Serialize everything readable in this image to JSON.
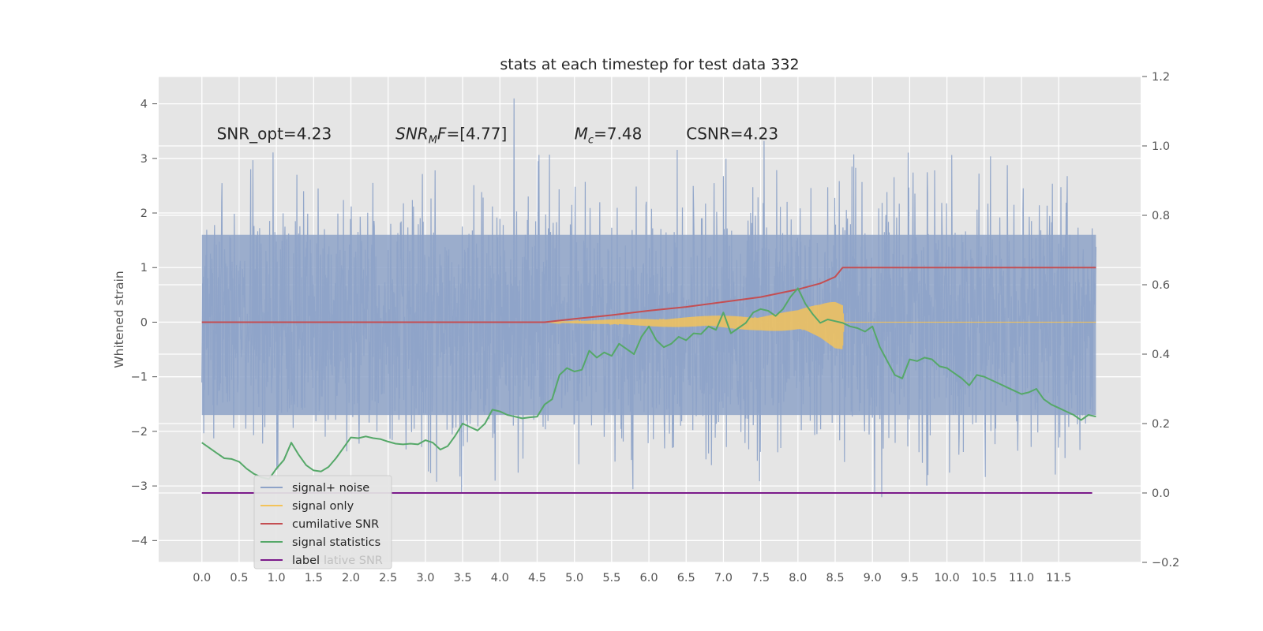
{
  "chart_data": {
    "type": "line",
    "title": "stats at each timestep for test data 332",
    "ylabel": "Whitened strain",
    "xlabel": "",
    "xlim": [
      -0.58,
      12.6
    ],
    "ylim": [
      -4.4,
      4.5
    ],
    "y2lim": [
      -0.2,
      1.2
    ],
    "grid": true,
    "x_ticks": [
      "0.0",
      "0.5",
      "1.0",
      "1.5",
      "2.0",
      "2.5",
      "3.0",
      "3.5",
      "4.0",
      "4.5",
      "5.0",
      "5.5",
      "6.0",
      "6.5",
      "7.0",
      "7.5",
      "8.0",
      "8.5",
      "9.0",
      "9.5",
      "10.0",
      "10.5",
      "11.0",
      "11.5"
    ],
    "y_ticks": [
      4,
      3,
      2,
      1,
      0,
      -1,
      -2,
      -3,
      -4
    ],
    "y_tick_labels": [
      "4",
      "3",
      "2",
      "1",
      "0",
      "−1",
      "−2",
      "−3",
      "−4"
    ],
    "y2_ticks": [
      1.2,
      1.0,
      0.8,
      0.6,
      0.4,
      0.2,
      0.0,
      -0.2
    ],
    "y2_tick_labels": [
      "1.2",
      "1.0",
      "0.8",
      "0.6",
      "0.4",
      "0.2",
      "0.0",
      "−0.2"
    ],
    "annotations": [
      {
        "x": 0.2,
        "y": 3.35,
        "text": "SNR_opt=4.23"
      },
      {
        "x": 2.6,
        "y": 3.35,
        "text": "SNR_MF=[4.77]",
        "html": "<tspan font-style='italic'>SNR</tspan><tspan font-style='italic' font-size='13' dy='5'>M</tspan><tspan font-style='italic' dy='-5'>F</tspan>=[4.77]"
      },
      {
        "x": 5.0,
        "y": 3.35,
        "text": "M_c=7.48",
        "html": "<tspan font-style='italic'>M</tspan><tspan font-style='italic' font-size='13' dy='5'>c</tspan><tspan dy='-5'>=7.48</tspan>"
      },
      {
        "x": 6.5,
        "y": 3.35,
        "text": "CSNR=4.23"
      }
    ],
    "legend": {
      "placement": "lower-left",
      "entries": [
        {
          "label": "signal+ noise",
          "color": "#8ea3c8"
        },
        {
          "label": "signal only",
          "color": "#f3c35a"
        },
        {
          "label": "cumilative SNR",
          "color": "#c44e52"
        },
        {
          "label": "signal statistics",
          "color": "#55a868"
        },
        {
          "label": "label",
          "color": "#7b1a8a"
        }
      ],
      "ghost_text": "lative SNR"
    },
    "series": [
      {
        "name": "signal+ noise",
        "axis": "left",
        "color": "#8ea3c8",
        "x_range": [
          0.0,
          12.0
        ],
        "envelope": {
          "typical_band": [
            -1.7,
            1.6
          ],
          "extreme_peak": 4.1,
          "extreme_trough": -3.9
        }
      },
      {
        "name": "signal only",
        "axis": "left",
        "color": "#f3c35a",
        "x_range": [
          4.6,
          12.0
        ],
        "envelope_x": [
          4.6,
          5.5,
          6.5,
          7.5,
          8.0,
          8.3,
          8.5,
          8.6,
          8.62,
          12.0
        ],
        "envelope_amp": [
          0.0,
          0.05,
          0.1,
          0.15,
          0.22,
          0.35,
          0.5,
          0.5,
          0.0,
          0.0
        ]
      },
      {
        "name": "cumilative SNR",
        "axis": "left",
        "color": "#c44e52",
        "x": [
          0.0,
          4.6,
          5.0,
          5.5,
          6.0,
          6.5,
          7.0,
          7.5,
          8.0,
          8.3,
          8.5,
          8.6,
          12.0
        ],
        "y": [
          0.0,
          0.0,
          0.06,
          0.13,
          0.21,
          0.28,
          0.37,
          0.46,
          0.6,
          0.71,
          0.83,
          1.0,
          1.0
        ]
      },
      {
        "name": "signal statistics",
        "axis": "right",
        "color": "#55a868",
        "x": [
          0.0,
          0.1,
          0.2,
          0.3,
          0.4,
          0.5,
          0.6,
          0.7,
          0.8,
          0.9,
          1.0,
          1.1,
          1.2,
          1.3,
          1.4,
          1.5,
          1.6,
          1.7,
          1.8,
          1.9,
          2.0,
          2.1,
          2.2,
          2.3,
          2.4,
          2.5,
          2.6,
          2.7,
          2.8,
          2.9,
          3.0,
          3.1,
          3.2,
          3.3,
          3.4,
          3.5,
          3.6,
          3.7,
          3.8,
          3.9,
          4.0,
          4.1,
          4.2,
          4.3,
          4.4,
          4.5,
          4.6,
          4.7,
          4.8,
          4.9,
          5.0,
          5.1,
          5.2,
          5.3,
          5.4,
          5.5,
          5.6,
          5.7,
          5.8,
          5.9,
          6.0,
          6.1,
          6.2,
          6.3,
          6.4,
          6.5,
          6.6,
          6.7,
          6.8,
          6.9,
          7.0,
          7.1,
          7.2,
          7.3,
          7.4,
          7.5,
          7.6,
          7.7,
          7.8,
          7.9,
          8.0,
          8.1,
          8.2,
          8.3,
          8.4,
          8.5,
          8.6,
          8.7,
          8.8,
          8.9,
          9.0,
          9.1,
          9.2,
          9.3,
          9.4,
          9.5,
          9.6,
          9.7,
          9.8,
          9.9,
          10.0,
          10.1,
          10.2,
          10.3,
          10.4,
          10.5,
          10.6,
          10.7,
          10.8,
          10.9,
          11.0,
          11.1,
          11.2,
          11.3,
          11.4,
          11.5,
          11.6,
          11.7,
          11.8,
          11.9,
          12.0
        ],
        "y": [
          0.145,
          0.13,
          0.115,
          0.1,
          0.098,
          0.09,
          0.07,
          0.055,
          0.045,
          0.04,
          0.07,
          0.095,
          0.145,
          0.11,
          0.08,
          0.065,
          0.062,
          0.075,
          0.1,
          0.13,
          0.16,
          0.158,
          0.163,
          0.158,
          0.155,
          0.148,
          0.142,
          0.14,
          0.142,
          0.14,
          0.152,
          0.145,
          0.125,
          0.135,
          0.165,
          0.2,
          0.19,
          0.18,
          0.2,
          0.24,
          0.235,
          0.225,
          0.22,
          0.215,
          0.218,
          0.22,
          0.255,
          0.27,
          0.34,
          0.36,
          0.35,
          0.355,
          0.41,
          0.39,
          0.405,
          0.395,
          0.43,
          0.415,
          0.4,
          0.45,
          0.48,
          0.44,
          0.42,
          0.43,
          0.45,
          0.44,
          0.46,
          0.458,
          0.48,
          0.47,
          0.52,
          0.46,
          0.475,
          0.49,
          0.52,
          0.53,
          0.525,
          0.51,
          0.53,
          0.565,
          0.59,
          0.545,
          0.515,
          0.49,
          0.5,
          0.495,
          0.49,
          0.48,
          0.475,
          0.465,
          0.48,
          0.42,
          0.38,
          0.34,
          0.33,
          0.385,
          0.38,
          0.39,
          0.385,
          0.365,
          0.36,
          0.345,
          0.33,
          0.31,
          0.34,
          0.335,
          0.325,
          0.315,
          0.305,
          0.295,
          0.285,
          0.29,
          0.3,
          0.27,
          0.255,
          0.245,
          0.235,
          0.225,
          0.21,
          0.225,
          0.22
        ]
      },
      {
        "name": "label",
        "axis": "right",
        "color": "#7b1a8a",
        "x": [
          0.0,
          11.95
        ],
        "y": [
          0.0,
          0.0
        ]
      }
    ]
  }
}
